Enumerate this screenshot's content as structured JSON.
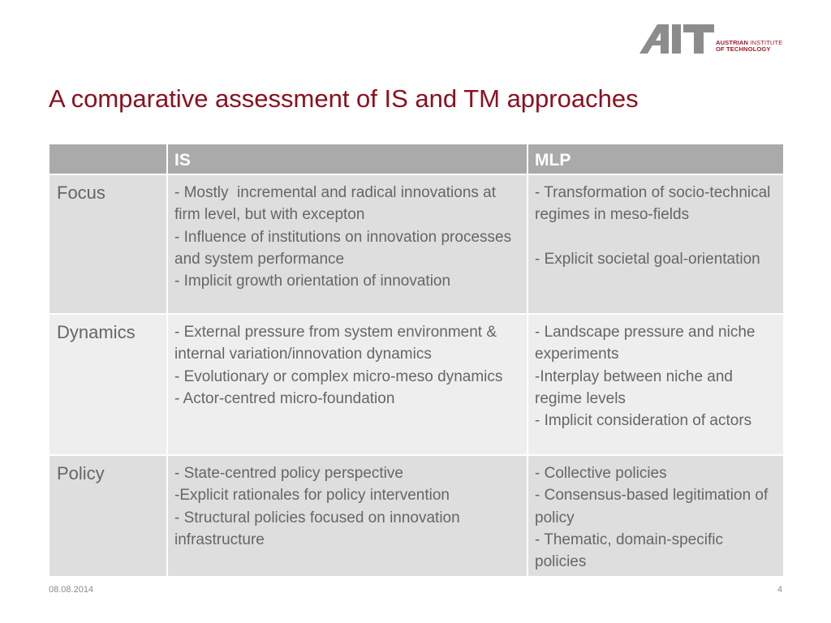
{
  "logo": {
    "mark": "AIT",
    "line1_bold": "AUSTRIAN",
    "line1_rest": " INSTITUTE",
    "line2": "OF TECHNOLOGY",
    "color": "#a31a2c",
    "mark_color": "#8c8c8c"
  },
  "title": "A comparative assessment of IS and TM approaches",
  "table": {
    "headers": [
      "",
      "IS",
      "MLP"
    ],
    "rows": [
      {
        "label": "Focus",
        "is": [
          "- Mostly  incremental and radical innovations at firm level, but with excepton",
          "- Influence of institutions on innovation processes and system performance",
          "- Implicit growth orientation of innovation"
        ],
        "mlp": [
          "- Transformation of socio-technical regimes in meso-fields",
          "",
          "- Explicit societal goal-orientation"
        ]
      },
      {
        "label": "Dynamics",
        "is": [
          "- External pressure from system environment & internal variation/innovation dynamics",
          "- Evolutionary or complex micro-meso dynamics",
          "- Actor-centred micro-foundation"
        ],
        "mlp": [
          "- Landscape pressure and niche experiments",
          "-Interplay between niche and regime levels",
          "- Implicit consideration of actors"
        ]
      },
      {
        "label": "Policy",
        "is": [
          "- State-centred policy perspective",
          "-Explicit rationales for policy intervention",
          "- Structural policies focused on innovation infrastructure"
        ],
        "mlp": [
          "- Collective policies",
          "- Consensus-based legitimation of policy",
          "- Thematic, domain-specific policies"
        ]
      }
    ]
  },
  "footer": {
    "date": "08.08.2014",
    "page": "4"
  },
  "colors": {
    "title": "#8c1020",
    "header_bg": "#aaaaaa",
    "row_dark": "#dedede",
    "row_light": "#eeeeee",
    "text": "#666666"
  }
}
